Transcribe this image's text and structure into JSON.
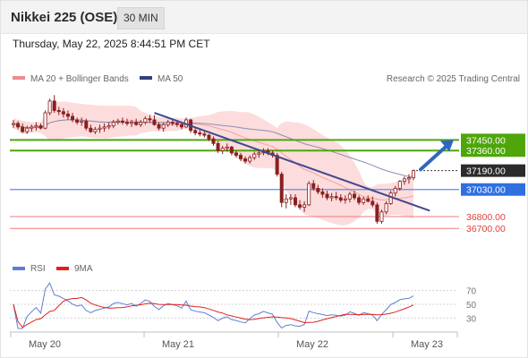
{
  "header": {
    "title": "Nikkei 225 (OSE)",
    "timeframe_button": "30 MIN"
  },
  "timestamp": "Thursday, May 22, 2025 8:44:51 PM CET",
  "legend": {
    "bollinger": "MA 20 + Bollinger Bands",
    "ma50": "MA 50",
    "rsi": "RSI",
    "rsi_ma": "9MA"
  },
  "credit": "Research © 2025 Trading Central",
  "colors": {
    "candle": "#8b1f1f",
    "bollinger_fill": "#fcdcdc",
    "bollinger_line": "#f4a0a0",
    "ma50": "#8a8fb5",
    "trendline": "#3d4a8f",
    "resistance": "#4ea60b",
    "pivot": "#5b8ee6",
    "support": "#ef7a7a",
    "arrow": "#2f67c0",
    "rsi": "#5c7fd6",
    "rsi_ma": "#e02020"
  },
  "chart_data": {
    "type": "candlestick",
    "y_range": [
      36550,
      37870
    ],
    "x_labels": [
      "May 20",
      "May 21",
      "May 22",
      "May 23"
    ],
    "rsi_ticks": [
      "70",
      "50",
      "30"
    ],
    "levels": [
      {
        "label": "37450.00",
        "value": 37450,
        "kind": "resistance"
      },
      {
        "label": "37360.00",
        "value": 37360,
        "kind": "resistance"
      },
      {
        "label": "37190.00",
        "value": 37190,
        "kind": "last_price"
      },
      {
        "label": "37030.00",
        "value": 37030,
        "kind": "pivot"
      },
      {
        "label": "36800.00",
        "value": 36800,
        "kind": "support"
      },
      {
        "label": "36700.00",
        "value": 36700,
        "kind": "support"
      }
    ],
    "candles": [
      [
        37580,
        37620,
        37550,
        37590
      ],
      [
        37590,
        37610,
        37540,
        37560
      ],
      [
        37560,
        37590,
        37510,
        37520
      ],
      [
        37520,
        37570,
        37500,
        37550
      ],
      [
        37550,
        37580,
        37520,
        37560
      ],
      [
        37560,
        37600,
        37530,
        37570
      ],
      [
        37570,
        37590,
        37540,
        37550
      ],
      [
        37550,
        37700,
        37540,
        37680
      ],
      [
        37680,
        37800,
        37660,
        37780
      ],
      [
        37780,
        37830,
        37680,
        37700
      ],
      [
        37700,
        37730,
        37660,
        37690
      ],
      [
        37690,
        37720,
        37640,
        37670
      ],
      [
        37670,
        37700,
        37620,
        37650
      ],
      [
        37650,
        37680,
        37600,
        37620
      ],
      [
        37620,
        37640,
        37580,
        37600
      ],
      [
        37600,
        37640,
        37570,
        37610
      ],
      [
        37610,
        37630,
        37530,
        37550
      ],
      [
        37550,
        37580,
        37510,
        37520
      ],
      [
        37520,
        37560,
        37500,
        37540
      ],
      [
        37540,
        37580,
        37510,
        37550
      ],
      [
        37550,
        37590,
        37520,
        37560
      ],
      [
        37560,
        37600,
        37540,
        37570
      ],
      [
        37570,
        37620,
        37550,
        37600
      ],
      [
        37600,
        37630,
        37580,
        37610
      ],
      [
        37610,
        37640,
        37580,
        37600
      ],
      [
        37600,
        37630,
        37570,
        37590
      ],
      [
        37590,
        37620,
        37560,
        37600
      ],
      [
        37600,
        37630,
        37570,
        37580
      ],
      [
        37580,
        37620,
        37560,
        37600
      ],
      [
        37600,
        37650,
        37580,
        37630
      ],
      [
        37630,
        37660,
        37600,
        37620
      ],
      [
        37620,
        37660,
        37570,
        37580
      ],
      [
        37580,
        37600,
        37530,
        37550
      ],
      [
        37550,
        37600,
        37520,
        37580
      ],
      [
        37580,
        37620,
        37560,
        37600
      ],
      [
        37600,
        37620,
        37570,
        37590
      ],
      [
        37590,
        37610,
        37560,
        37580
      ],
      [
        37580,
        37600,
        37540,
        37560
      ],
      [
        37560,
        37640,
        37550,
        37620
      ],
      [
        37620,
        37630,
        37510,
        37530
      ],
      [
        37530,
        37550,
        37490,
        37510
      ],
      [
        37510,
        37540,
        37480,
        37500
      ],
      [
        37500,
        37520,
        37470,
        37490
      ],
      [
        37490,
        37500,
        37440,
        37460
      ],
      [
        37460,
        37480,
        37400,
        37420
      ],
      [
        37420,
        37440,
        37340,
        37360
      ],
      [
        37360,
        37400,
        37330,
        37380
      ],
      [
        37380,
        37420,
        37350,
        37390
      ],
      [
        37390,
        37400,
        37320,
        37340
      ],
      [
        37340,
        37360,
        37300,
        37320
      ],
      [
        37320,
        37340,
        37270,
        37290
      ],
      [
        37290,
        37310,
        37250,
        37270
      ],
      [
        37270,
        37320,
        37250,
        37300
      ],
      [
        37300,
        37350,
        37280,
        37330
      ],
      [
        37330,
        37360,
        37300,
        37340
      ],
      [
        37340,
        37380,
        37320,
        37360
      ],
      [
        37360,
        37380,
        37320,
        37340
      ],
      [
        37340,
        37360,
        37300,
        37320
      ],
      [
        37320,
        37340,
        37140,
        37160
      ],
      [
        37160,
        37180,
        36880,
        36920
      ],
      [
        36920,
        36990,
        36870,
        36950
      ],
      [
        36950,
        36990,
        36900,
        36960
      ],
      [
        36960,
        36990,
        36880,
        36900
      ],
      [
        36900,
        36940,
        36860,
        36880
      ],
      [
        36880,
        36930,
        36840,
        36900
      ],
      [
        36900,
        37100,
        36890,
        37080
      ],
      [
        37080,
        37110,
        37020,
        37040
      ],
      [
        37040,
        37070,
        36990,
        37010
      ],
      [
        37010,
        37040,
        36960,
        36990
      ],
      [
        36990,
        37020,
        36940,
        36960
      ],
      [
        36960,
        37000,
        36930,
        36970
      ],
      [
        36970,
        37010,
        36940,
        36960
      ],
      [
        36960,
        36990,
        36920,
        36940
      ],
      [
        36940,
        36980,
        36910,
        36950
      ],
      [
        36950,
        37010,
        36920,
        36990
      ],
      [
        36990,
        37020,
        36940,
        36960
      ],
      [
        36960,
        36980,
        36900,
        36920
      ],
      [
        36920,
        36970,
        36900,
        36950
      ],
      [
        36950,
        36980,
        36920,
        36930
      ],
      [
        36930,
        36970,
        36880,
        36900
      ],
      [
        36900,
        36920,
        36740,
        36760
      ],
      [
        36760,
        36860,
        36740,
        36840
      ],
      [
        36840,
        36930,
        36820,
        36910
      ],
      [
        36910,
        37020,
        36900,
        37000
      ],
      [
        37000,
        37060,
        36970,
        37040
      ],
      [
        37040,
        37110,
        37020,
        37100
      ],
      [
        37100,
        37140,
        37070,
        37120
      ],
      [
        37120,
        37160,
        37080,
        37130
      ],
      [
        37130,
        37200,
        37110,
        37190
      ]
    ]
  }
}
